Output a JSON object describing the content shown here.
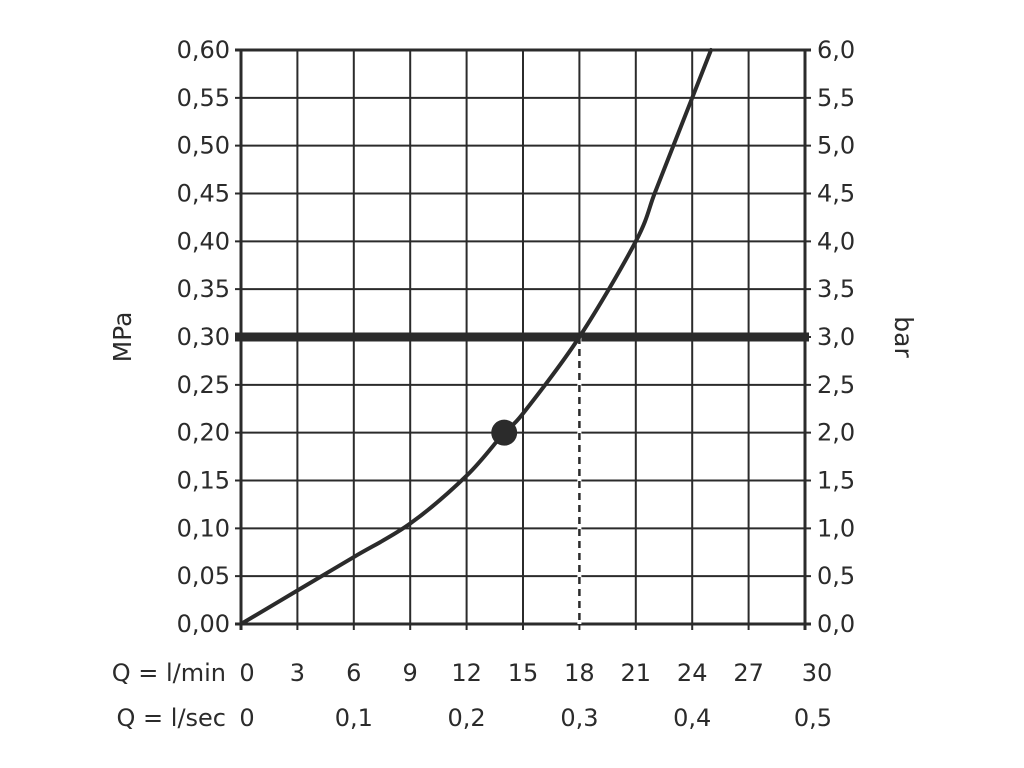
{
  "chart_data": {
    "type": "line",
    "title": "",
    "y_left": {
      "label": "MPa",
      "ylim": [
        0,
        0.6
      ],
      "ticks": [
        0,
        0.05,
        0.1,
        0.15,
        0.2,
        0.25,
        0.3,
        0.35,
        0.4,
        0.45,
        0.5,
        0.55,
        0.6
      ],
      "tick_labels": [
        "0,00",
        "0,05",
        "0,10",
        "0,15",
        "0,20",
        "0,25",
        "0,30",
        "0,35",
        "0,40",
        "0,45",
        "0,50",
        "0,55",
        "0,60"
      ]
    },
    "y_right": {
      "label": "bar",
      "ylim": [
        0,
        6
      ],
      "tick_labels": [
        "0,0",
        "0,5",
        "1,0",
        "1,5",
        "2,0",
        "2,5",
        "3,0",
        "3,5",
        "4,0",
        "4,5",
        "5,0",
        "5,5",
        "6,0"
      ]
    },
    "x_primary": {
      "label": "Q = l/min",
      "xlim": [
        0,
        30
      ],
      "ticks": [
        0,
        3,
        6,
        9,
        12,
        15,
        18,
        21,
        24,
        27,
        30
      ],
      "tick_labels": [
        "0",
        "3",
        "6",
        "9",
        "12",
        "15",
        "18",
        "21",
        "24",
        "27",
        "30"
      ]
    },
    "x_secondary": {
      "label": "Q = l/sec",
      "ticks_lmin": [
        0,
        6,
        12,
        18,
        24,
        30
      ],
      "tick_labels": [
        "0",
        "0,1",
        "0,2",
        "0,3",
        "0,4",
        "0,5"
      ]
    },
    "grid": true,
    "series": [
      {
        "x": [
          0,
          3,
          6,
          9,
          12,
          14,
          15,
          18,
          21,
          22,
          23,
          25
        ],
        "y": [
          0,
          0.035,
          0.07,
          0.105,
          0.155,
          0.2,
          0.22,
          0.3,
          0.4,
          0.45,
          0.5,
          0.6
        ]
      }
    ],
    "reference_line": {
      "y": 0.3
    },
    "marker_point": {
      "x": 14,
      "y": 0.2
    },
    "drop_line": {
      "x": 18,
      "y": 0.3
    }
  }
}
